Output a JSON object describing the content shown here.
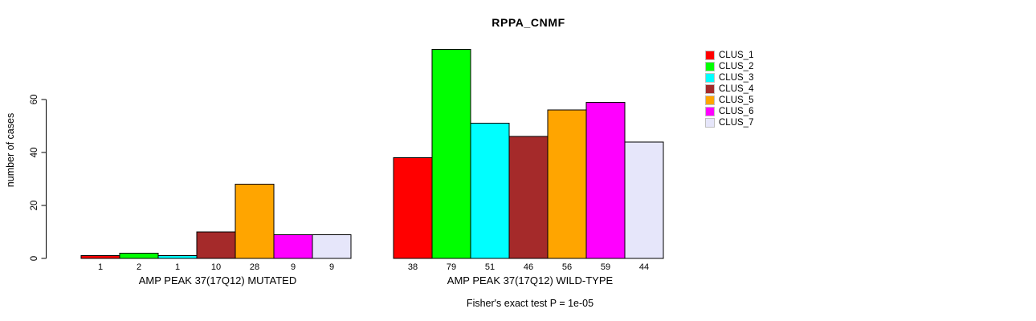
{
  "title": "RPPA_CNMF",
  "chart_data": {
    "type": "bar",
    "title": "RPPA_CNMF",
    "xlabel": "",
    "ylabel": "number of cases",
    "ylim": [
      0,
      79
    ],
    "yticks": [
      0,
      20,
      40,
      60
    ],
    "grid": false,
    "legend_position": "right",
    "clusters": [
      "CLUS_1",
      "CLUS_2",
      "CLUS_3",
      "CLUS_4",
      "CLUS_5",
      "CLUS_6",
      "CLUS_7"
    ],
    "colors": [
      "#ff0000",
      "#00ff00",
      "#00ffff",
      "#a52a2a",
      "#ffa500",
      "#ff00ff",
      "#e6e6fa"
    ],
    "groups": [
      {
        "label": "AMP PEAK 37(17Q12) MUTATED",
        "values": [
          1,
          2,
          1,
          10,
          28,
          9,
          9
        ]
      },
      {
        "label": "AMP PEAK 37(17Q12) WILD-TYPE",
        "values": [
          38,
          79,
          51,
          46,
          56,
          59,
          44
        ]
      }
    ],
    "annotation": "Fisher's exact test P = 1e-05"
  }
}
